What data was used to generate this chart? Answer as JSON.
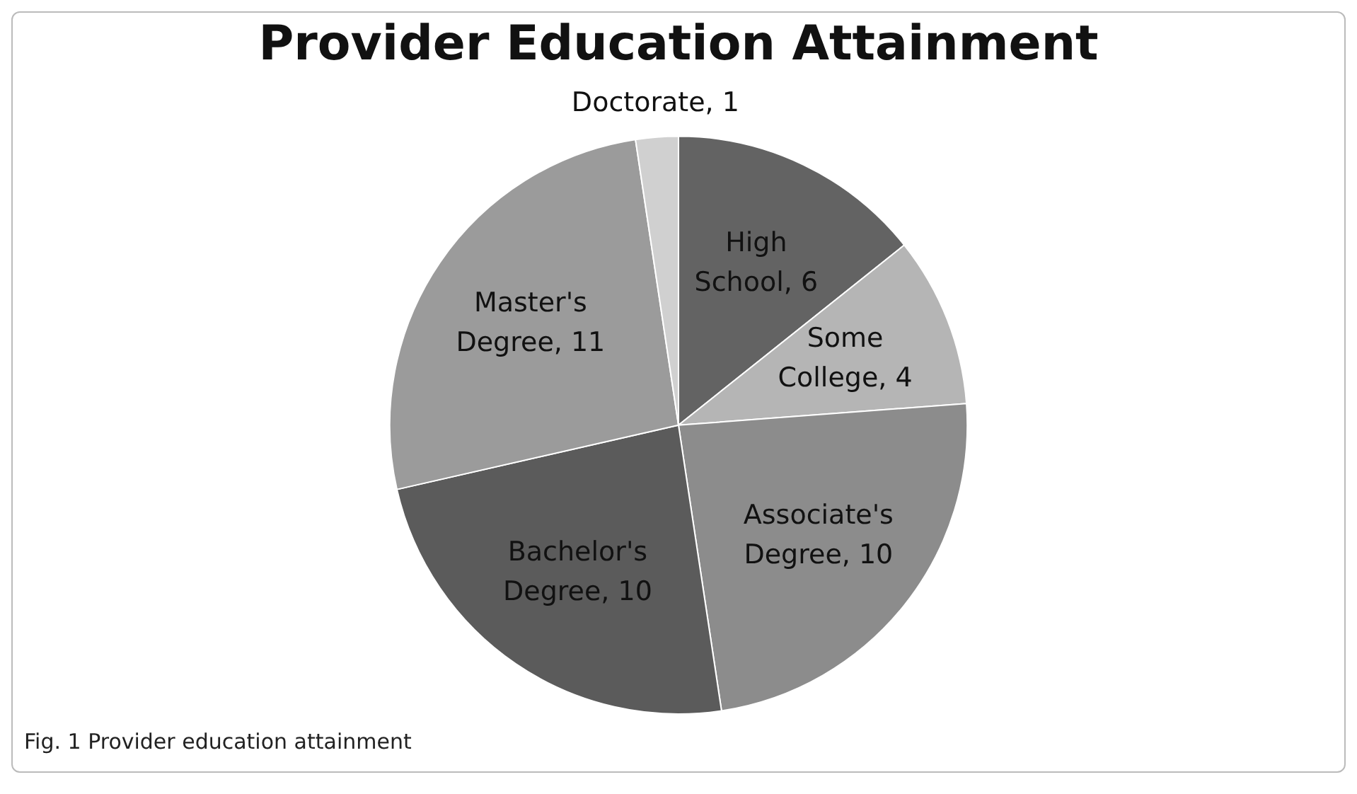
{
  "chart_data": {
    "type": "pie",
    "title": "Provider Education Attainment",
    "categories": [
      "High School",
      "Some College",
      "Associate's Degree",
      "Bachelor's Degree",
      "Master's Degree",
      "Doctorate"
    ],
    "values": [
      6,
      4,
      10,
      10,
      11,
      1
    ],
    "value_labels": [
      ", 6",
      ", 4",
      ", 10",
      ", 10",
      ", 11",
      ", 1"
    ],
    "colors": [
      "#636363",
      "#b5b5b5",
      "#8c8c8c",
      "#5b5b5b",
      "#9b9b9b",
      "#d0d0d0"
    ],
    "legend": false,
    "annotations": [
      "Fig. 1 Provider education attainment"
    ]
  }
}
